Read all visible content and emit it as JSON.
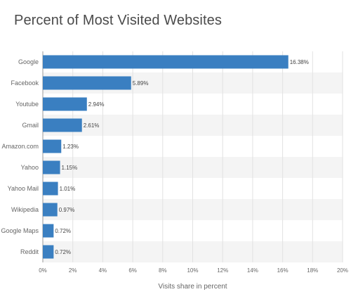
{
  "chart_data": {
    "type": "bar",
    "orientation": "horizontal",
    "title": "Percent of Most Visited Websites",
    "xlabel": "Visits share in percent",
    "ylabel": "",
    "categories": [
      "Google",
      "Facebook",
      "Youtube",
      "Gmail",
      "Amazon.com",
      "Yahoo",
      "Yahoo Mail",
      "Wikipedia",
      "Google Maps",
      "Reddit"
    ],
    "values": [
      16.38,
      5.89,
      2.94,
      2.61,
      1.23,
      1.15,
      1.01,
      0.97,
      0.72,
      0.72
    ],
    "value_labels": [
      "16.38%",
      "5.89%",
      "2.94%",
      "2.61%",
      "1.23%",
      "1.15%",
      "1.01%",
      "0.97%",
      "0.72%",
      "0.72%"
    ],
    "xlim": [
      0,
      20
    ],
    "xticks": [
      "0%",
      "2%",
      "4%",
      "6%",
      "8%",
      "10%",
      "12%",
      "14%",
      "16%",
      "18%",
      "20%"
    ],
    "grid": true,
    "bar_color": "#3a7fc1",
    "stripe_color": "#f4f4f4"
  }
}
